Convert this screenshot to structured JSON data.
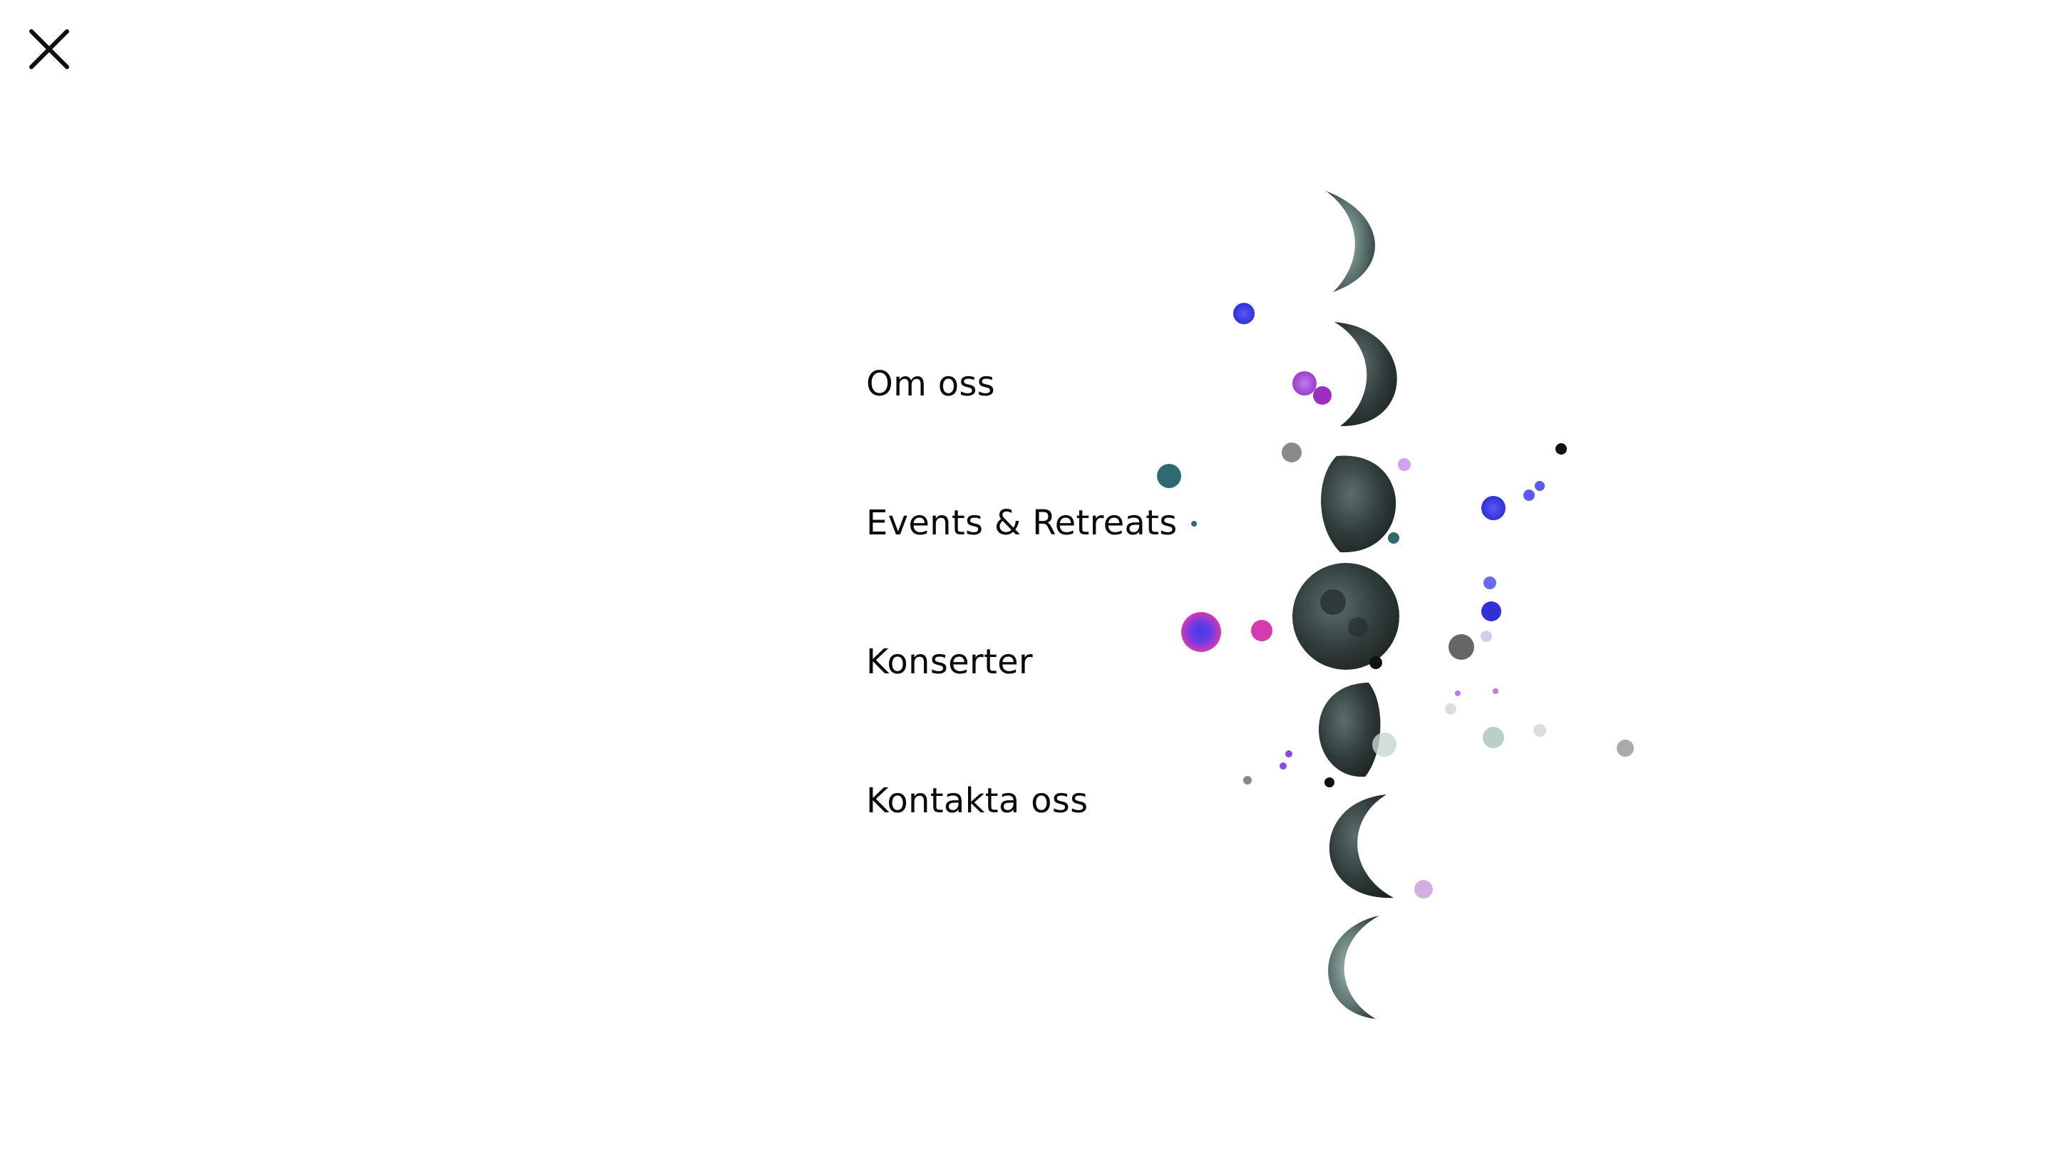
{
  "menu": {
    "close_icon": "close-icon",
    "items": [
      {
        "label": "Om oss"
      },
      {
        "label": "Events & Retreats"
      },
      {
        "label": "Konserter"
      },
      {
        "label": "Kontakta oss"
      }
    ]
  },
  "artwork": {
    "description_icon": "moon-phases-watercolor",
    "colors": {
      "moon": "#2f3b3a",
      "moon_light": "#6f8b86",
      "splash_purple": "#b04cd8",
      "splash_blue": "#3b3bea",
      "splash_magenta": "#d63ab0",
      "splash_teal": "#2e6b70",
      "splash_gray": "#8a8a8a"
    }
  }
}
